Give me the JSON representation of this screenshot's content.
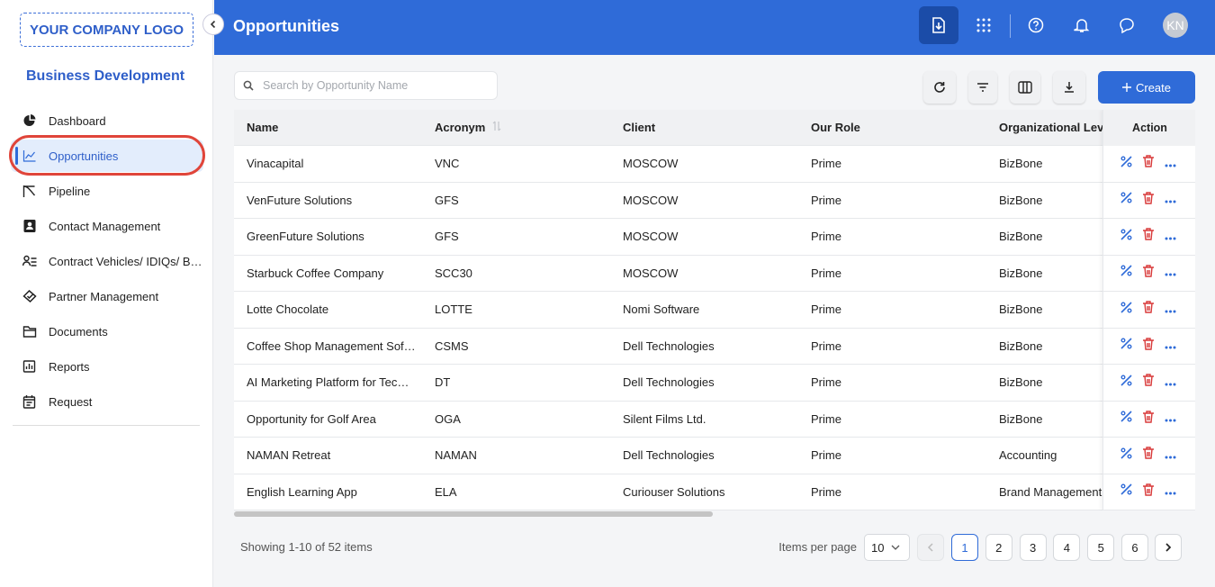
{
  "sidebar": {
    "logo": "YOUR COMPANY LOGO",
    "section": "Business Development",
    "nav": [
      "Dashboard",
      "Opportunities",
      "Pipeline",
      "Contact Management",
      "Contract Vehicles/ IDIQs/ B…",
      "Partner Management",
      "Documents",
      "Reports",
      "Request"
    ]
  },
  "header": {
    "title": "Opportunities",
    "avatar": "KN"
  },
  "toolbar": {
    "search_placeholder": "Search by Opportunity Name",
    "create": "Create"
  },
  "table": {
    "columns": [
      "Name",
      "Acronym",
      "Client",
      "Our Role",
      "Organizational Level",
      "Action"
    ],
    "rows": [
      [
        "Vinacapital",
        "VNC",
        "MOSCOW",
        "Prime",
        "BizBone"
      ],
      [
        "VenFuture Solutions",
        "GFS",
        "MOSCOW",
        "Prime",
        "BizBone"
      ],
      [
        "GreenFuture Solutions",
        "GFS",
        "MOSCOW",
        "Prime",
        "BizBone"
      ],
      [
        "Starbuck Coffee Company",
        "SCC30",
        "MOSCOW",
        "Prime",
        "BizBone"
      ],
      [
        "Lotte Chocolate",
        "LOTTE",
        "Nomi Software",
        "Prime",
        "BizBone"
      ],
      [
        "Coffee Shop Management Sof…",
        "CSMS",
        "Dell Technologies",
        "Prime",
        "BizBone"
      ],
      [
        "AI Marketing Platform for Tec…",
        "DT",
        "Dell Technologies",
        "Prime",
        "BizBone"
      ],
      [
        "Opportunity for Golf Area",
        "OGA",
        "Silent Films Ltd.",
        "Prime",
        "BizBone"
      ],
      [
        "NAMAN Retreat",
        "NAMAN",
        "Dell Technologies",
        "Prime",
        "Accounting"
      ],
      [
        "English Learning App",
        "ELA",
        "Curiouser Solutions",
        "Prime",
        "Brand Management"
      ]
    ]
  },
  "footer": {
    "summary": "Showing 1-10 of 52 items",
    "items_per_page_label": "Items per page",
    "items_per_page": 10,
    "pages": [
      1,
      2,
      3,
      4,
      5,
      6
    ]
  }
}
